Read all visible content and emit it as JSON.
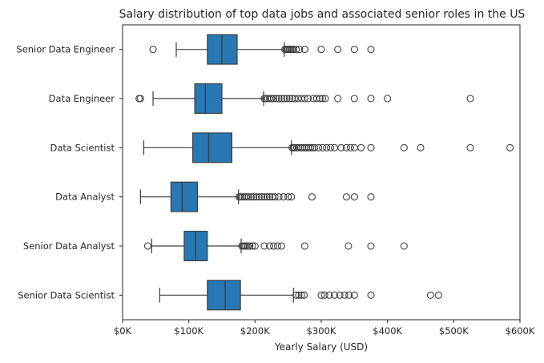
{
  "chart_data": {
    "type": "box",
    "title": "Salary distribution of top data jobs and associated senior roles in the US",
    "xlabel": "Yearly Salary (USD)",
    "ylabel": "",
    "xlim": [
      0,
      600000
    ],
    "xticks": [
      0,
      100000,
      200000,
      300000,
      400000,
      500000,
      600000
    ],
    "xtick_labels": [
      "$0K",
      "$100K",
      "$200K",
      "$300K",
      "$400K",
      "$500K",
      "$600K"
    ],
    "grid": false,
    "box_color": "#2878b5",
    "categories": [
      "Senior Data Engineer",
      "Data Engineer",
      "Data Scientist",
      "Data Analyst",
      "Senior Data Analyst",
      "Senior Data Scientist"
    ],
    "boxes": [
      {
        "category": "Senior Data Engineer",
        "whisker_low": 81000,
        "q1": 128000,
        "median": 150000,
        "q3": 173000,
        "whisker_high": 244000,
        "outliers": [
          46000,
          245000,
          247000,
          249000,
          250000,
          252000,
          254000,
          256000,
          258000,
          262000,
          267000,
          275000,
          300000,
          325000,
          350000,
          375000
        ]
      },
      {
        "category": "Data Engineer",
        "whisker_low": 46000,
        "q1": 109000,
        "median": 125000,
        "q3": 150000,
        "whisker_high": 213000,
        "outliers": [
          25000,
          27000,
          214000,
          216000,
          219000,
          222000,
          225000,
          228000,
          232000,
          236000,
          240000,
          244000,
          248000,
          252000,
          256000,
          260000,
          265000,
          270000,
          275000,
          280000,
          288000,
          293000,
          298000,
          302000,
          306000,
          325000,
          350000,
          375000,
          400000,
          525000
        ]
      },
      {
        "category": "Data Scientist",
        "whisker_low": 32000,
        "q1": 106000,
        "median": 130000,
        "q3": 165000,
        "whisker_high": 255000,
        "outliers": [
          256000,
          258000,
          260000,
          263000,
          266000,
          269000,
          272000,
          275000,
          278000,
          281000,
          284000,
          287000,
          290000,
          296000,
          302000,
          308000,
          314000,
          320000,
          330000,
          338000,
          344000,
          350000,
          360000,
          375000,
          425000,
          450000,
          525000,
          585000
        ]
      },
      {
        "category": "Data Analyst",
        "whisker_low": 27000,
        "q1": 73000,
        "median": 90000,
        "q3": 113000,
        "whisker_high": 175000,
        "outliers": [
          176000,
          178000,
          181000,
          184000,
          187000,
          190000,
          194000,
          198000,
          202000,
          206000,
          210000,
          214000,
          218000,
          222000,
          226000,
          230000,
          236000,
          243000,
          250000,
          255000,
          286000,
          338000,
          350000,
          375000
        ]
      },
      {
        "category": "Senior Data Analyst",
        "whisker_low": 44000,
        "q1": 93000,
        "median": 110000,
        "q3": 128000,
        "whisker_high": 179000,
        "outliers": [
          38000,
          180000,
          182000,
          184000,
          186000,
          189000,
          192000,
          196000,
          200000,
          214000,
          222000,
          228000,
          234000,
          240000,
          275000,
          341000,
          375000,
          425000
        ]
      },
      {
        "category": "Senior Data Scientist",
        "whisker_low": 56000,
        "q1": 128000,
        "median": 155000,
        "q3": 178000,
        "whisker_high": 258000,
        "outliers": [
          262000,
          266000,
          270000,
          274000,
          300000,
          305000,
          312000,
          320000,
          328000,
          335000,
          342000,
          350000,
          375000,
          465000,
          477000
        ]
      }
    ]
  }
}
